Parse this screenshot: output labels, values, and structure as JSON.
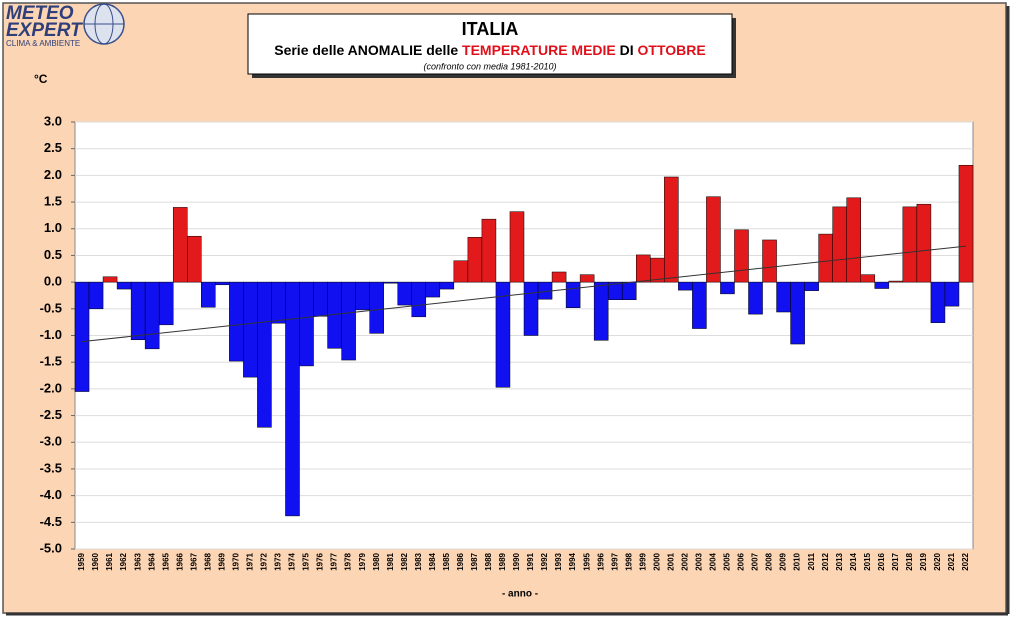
{
  "chart_data": {
    "type": "bar",
    "logo": {
      "line1": "METEO",
      "line2": "EXPERT",
      "line3": "CLIMA & AMBIENTE"
    },
    "title": "ITALIA",
    "subtitle": [
      {
        "text": "Serie delle ",
        "color": "#000000"
      },
      {
        "text": "ANOMALIE",
        "color": "#000000"
      },
      {
        "text": " delle ",
        "color": "#000000"
      },
      {
        "text": "TEMPERATURE MEDIE",
        "color": "#e0101a"
      },
      {
        "text": " DI ",
        "color": "#000000"
      },
      {
        "text": "OTTOBRE",
        "color": "#e0101a"
      }
    ],
    "note": "(confronto  con media 1981-2010)",
    "y_label": "°C",
    "x_label": "- anno -",
    "categories": [
      "1959",
      "1960",
      "1961",
      "1962",
      "1963",
      "1964",
      "1965",
      "1966",
      "1967",
      "1968",
      "1969",
      "1970",
      "1971",
      "1972",
      "1973",
      "1974",
      "1975",
      "1976",
      "1977",
      "1978",
      "1979",
      "1980",
      "1981",
      "1982",
      "1983",
      "1984",
      "1985",
      "1986",
      "1987",
      "1988",
      "1989",
      "1990",
      "1991",
      "1992",
      "1993",
      "1994",
      "1995",
      "1996",
      "1997",
      "1998",
      "1999",
      "2000",
      "2001",
      "2002",
      "2003",
      "2004",
      "2005",
      "2006",
      "2007",
      "2008",
      "2009",
      "2010",
      "2011",
      "2012",
      "2013",
      "2014",
      "2015",
      "2016",
      "2017",
      "2018",
      "2019",
      "2020",
      "2021",
      "2022"
    ],
    "values": [
      -2.05,
      -0.5,
      0.1,
      -0.13,
      -1.08,
      -1.25,
      -0.8,
      1.4,
      0.86,
      -0.47,
      -0.05,
      -1.48,
      -1.78,
      -2.72,
      -0.77,
      -4.38,
      -1.57,
      -0.64,
      -1.24,
      -1.46,
      -0.52,
      -0.96,
      -0.02,
      -0.43,
      -0.65,
      -0.28,
      -0.13,
      0.4,
      0.84,
      1.18,
      -1.97,
      1.32,
      -1.0,
      -0.32,
      0.19,
      -0.48,
      0.14,
      -1.09,
      -0.33,
      -0.33,
      0.51,
      0.45,
      1.97,
      -0.15,
      -0.87,
      1.6,
      -0.22,
      0.98,
      -0.6,
      0.79,
      -0.56,
      -1.16,
      -0.16,
      0.9,
      1.41,
      1.58,
      0.14,
      -0.12,
      0.02,
      1.41,
      1.46,
      -0.76,
      -0.45,
      2.19
    ],
    "positive_color": "#e31a1c",
    "negative_color": "#1010f0",
    "trendline": true,
    "grid": true,
    "ylim": [
      -5,
      3
    ],
    "yticks": [
      {
        "value": -5,
        "label": "-5.0"
      },
      {
        "value": -4.5,
        "label": "-4.5"
      },
      {
        "value": -4,
        "label": "-4.0"
      },
      {
        "value": -3.5,
        "label": "-3.5"
      },
      {
        "value": -3,
        "label": "-3.0"
      },
      {
        "value": -2.5,
        "label": "-2.5"
      },
      {
        "value": -2,
        "label": "-2.0"
      },
      {
        "value": -1.5,
        "label": "-1.5"
      },
      {
        "value": -1,
        "label": "-1.0"
      },
      {
        "value": -0.5,
        "label": "-0.5"
      },
      {
        "value": 0,
        "label": "0.0"
      },
      {
        "value": 0.5,
        "label": "0.5"
      },
      {
        "value": 1,
        "label": "1.0"
      },
      {
        "value": 1.5,
        "label": "1.5"
      },
      {
        "value": 2,
        "label": "2.0"
      },
      {
        "value": 2.5,
        "label": "2.5"
      },
      {
        "value": 3,
        "label": "3.0"
      }
    ]
  }
}
